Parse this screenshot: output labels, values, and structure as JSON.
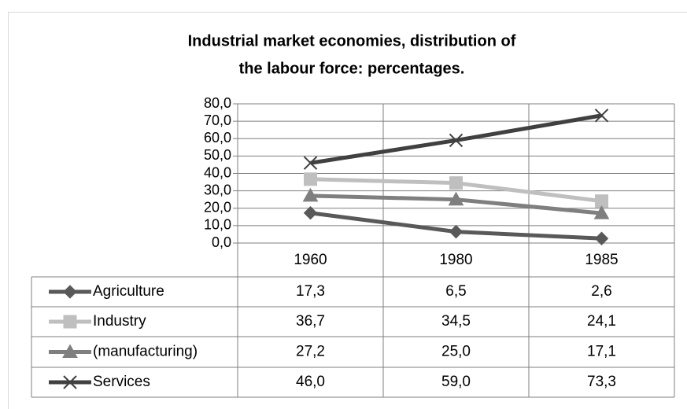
{
  "chart_data": {
    "type": "line",
    "title": [
      "Industrial market economies, distribution of",
      "the labour force: percentages."
    ],
    "categories": [
      "1960",
      "1980",
      "1985"
    ],
    "series": [
      {
        "name": "Agriculture",
        "color": "#595959",
        "marker": "diamond",
        "values": [
          17.3,
          6.5,
          2.6
        ],
        "value_labels": [
          "17,3",
          "6,5",
          "2,6"
        ]
      },
      {
        "name": "Industry",
        "color": "#bfbfbf",
        "marker": "square",
        "values": [
          36.7,
          34.5,
          24.1
        ],
        "value_labels": [
          "36,7",
          "34,5",
          "24,1"
        ]
      },
      {
        "name": "(manufacturing)",
        "color": "#7f7f7f",
        "marker": "triangle",
        "values": [
          27.2,
          25.0,
          17.1
        ],
        "value_labels": [
          "27,2",
          "25,0",
          "17,1"
        ]
      },
      {
        "name": "Services",
        "color": "#404040",
        "marker": "x",
        "values": [
          46.0,
          59.0,
          73.3
        ],
        "value_labels": [
          "46,0",
          "59,0",
          "73,3"
        ]
      }
    ],
    "ylim": [
      0,
      80
    ],
    "yticks": [
      {
        "value": 0,
        "label": "0,0"
      },
      {
        "value": 10,
        "label": "10,0"
      },
      {
        "value": 20,
        "label": "20,0"
      },
      {
        "value": 30,
        "label": "30,0"
      },
      {
        "value": 40,
        "label": "40,0"
      },
      {
        "value": 50,
        "label": "50,0"
      },
      {
        "value": 60,
        "label": "60,0"
      },
      {
        "value": 70,
        "label": "70,0"
      },
      {
        "value": 80,
        "label": "80,0"
      }
    ],
    "grid": true
  }
}
